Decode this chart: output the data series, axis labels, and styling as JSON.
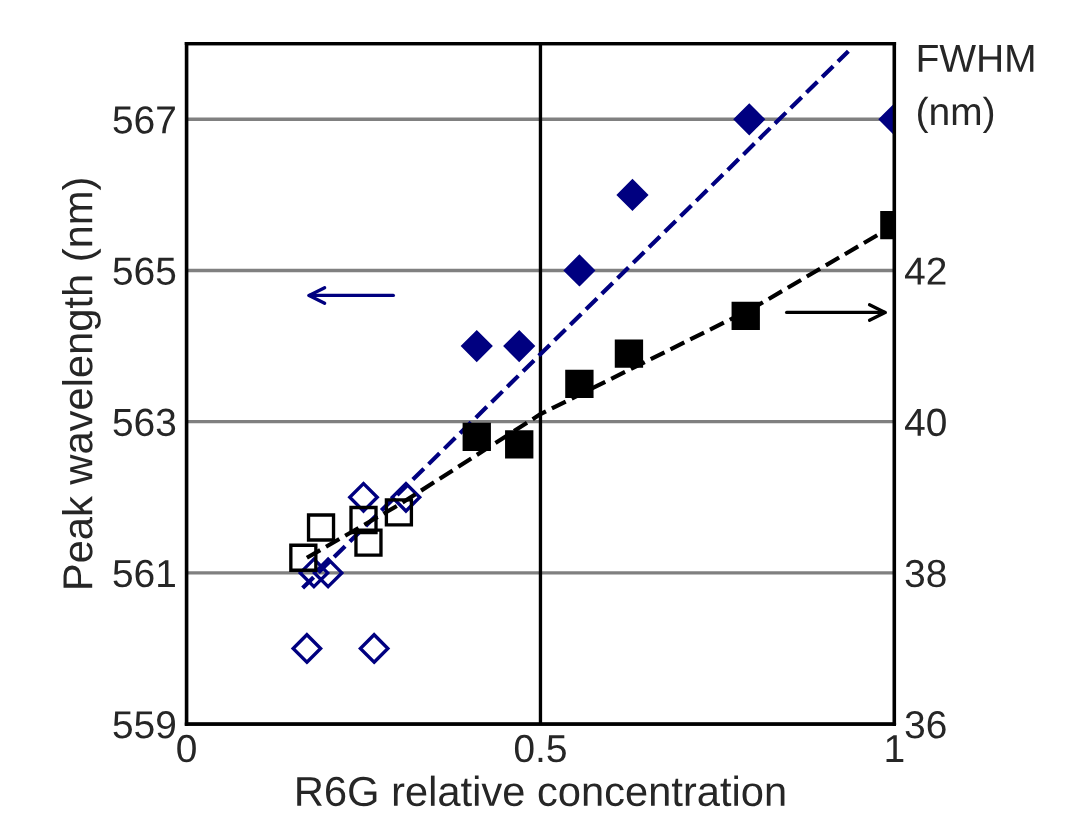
{
  "chart_data": {
    "type": "scatter",
    "xlabel": "R6G relative concentration",
    "ylabel": "Peak wavelength (nm)",
    "y2label": "FWHM\n(nm)",
    "xlim": [
      0,
      1
    ],
    "xticks": [
      0,
      0.5,
      1
    ],
    "ylim": [
      559,
      568
    ],
    "yticks": [
      559,
      561,
      563,
      565,
      567
    ],
    "y2lim": [
      36,
      45
    ],
    "y2ticks": [
      36,
      38,
      40,
      42
    ],
    "grid": "y",
    "legend": false,
    "ref_lines": [
      {
        "axis": "x",
        "value": 0.5,
        "color": "#000000"
      }
    ],
    "series": [
      {
        "marker": "diamond",
        "color": "#000080",
        "x": [
          0.17,
          0.265,
          0.18,
          0.2,
          0.25,
          0.31
        ],
        "values": [
          560,
          560,
          561,
          561,
          562,
          562
        ]
      },
      {
        "marker": "diamond",
        "color": "#000080",
        "x": [
          0.41,
          0.47,
          0.555,
          0.63,
          0.795,
          1.0
        ],
        "values": [
          564,
          564,
          565,
          566,
          567,
          567
        ]
      },
      {
        "marker": "square",
        "color": "#000000",
        "axis": "y2",
        "x": [
          0.165,
          0.19,
          0.25,
          0.257,
          0.3
        ],
        "values": [
          38.2,
          38.6,
          38.7,
          38.4,
          38.8
        ]
      },
      {
        "marker": "square",
        "color": "#000000",
        "axis": "y2",
        "x": [
          0.41,
          0.47,
          0.555,
          0.625,
          0.79,
          1.0
        ],
        "values": [
          39.8,
          39.7,
          40.5,
          40.9,
          41.4,
          42.6
        ]
      },
      {
        "type": "line",
        "line_style": "dashed",
        "marker": "none",
        "color": "#000080",
        "x": [
          0.164,
          0.935
        ],
        "values": [
          560.8,
          567.9
        ]
      },
      {
        "type": "line",
        "line_style": "dashed",
        "marker": "none",
        "color": "#000000",
        "axis": "y2",
        "x": [
          0.17,
          0.3,
          0.5,
          0.65,
          0.8,
          1.0
        ],
        "values": [
          38.2,
          38.9,
          40.1,
          40.8,
          41.5,
          42.6
        ]
      }
    ]
  }
}
